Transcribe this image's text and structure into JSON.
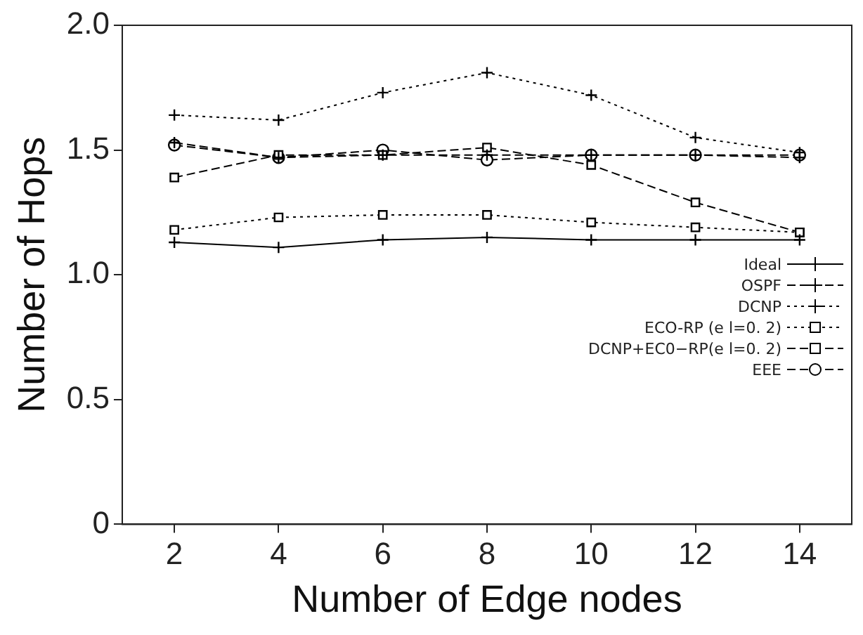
{
  "chart_data": {
    "type": "line",
    "xlabel": "Number of Edge nodes",
    "ylabel": "Number of Hops",
    "x": [
      2,
      4,
      6,
      8,
      10,
      12,
      14
    ],
    "xlim": [
      1,
      15
    ],
    "xticks": [
      2,
      4,
      6,
      8,
      10,
      12,
      14
    ],
    "ylim": [
      0,
      2
    ],
    "yticks": [
      0,
      0.5,
      {
        "value": 1,
        "label": "1.0"
      },
      1.5,
      {
        "value": 2,
        "label": "2.0"
      }
    ],
    "grid": false,
    "legend": "right",
    "series": [
      {
        "name": "Ideal",
        "color": "#000000",
        "marker": "cross",
        "line_style": "solid",
        "values": [
          1.13,
          1.11,
          1.14,
          1.15,
          1.14,
          1.14,
          1.14
        ]
      },
      {
        "name": "OSPF",
        "color": "#000000",
        "marker": "cross",
        "line_style": "dashed",
        "values": [
          1.53,
          1.47,
          1.48,
          1.48,
          1.48,
          1.48,
          1.47
        ]
      },
      {
        "name": "DCNP",
        "color": "#000000",
        "marker": "cross",
        "line_style": "dotted",
        "values": [
          1.64,
          1.62,
          1.73,
          1.81,
          1.72,
          1.55,
          1.49
        ]
      },
      {
        "name": "ECO-RP (e l=0. 2)",
        "color": "#000000",
        "marker": "square",
        "line_style": "dotted",
        "values": [
          1.18,
          1.23,
          1.24,
          1.24,
          1.21,
          1.19,
          1.17
        ]
      },
      {
        "name": "DCNP+EC0−RP(e l=0. 2)",
        "color": "#000000",
        "marker": "square",
        "line_style": "dashed",
        "values": [
          1.39,
          1.48,
          1.48,
          1.51,
          1.44,
          1.29,
          1.17
        ]
      },
      {
        "name": "EEE",
        "color": "#000000",
        "marker": "circle",
        "line_style": "dashed",
        "values": [
          1.52,
          1.47,
          1.5,
          1.46,
          1.48,
          1.48,
          1.48
        ]
      }
    ]
  }
}
